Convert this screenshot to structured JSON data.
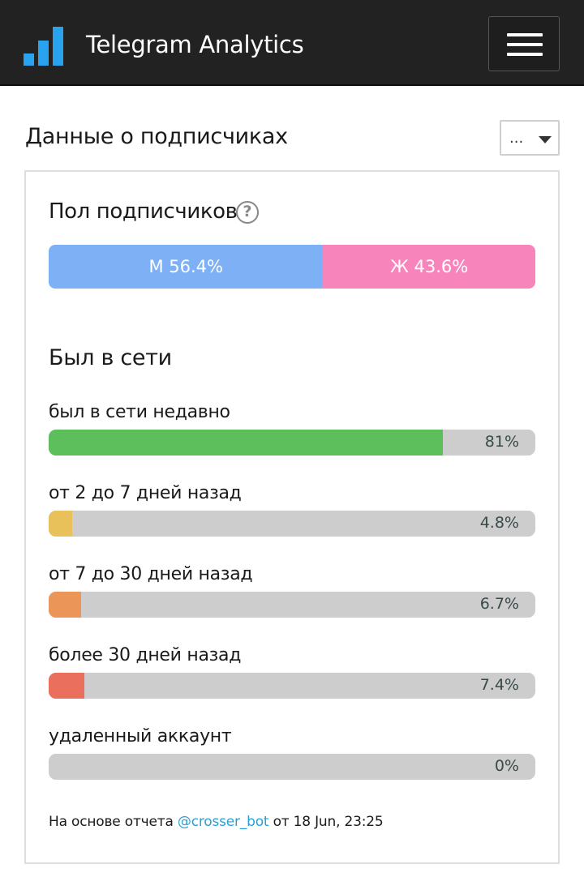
{
  "header": {
    "app_title": "Telegram Analytics",
    "logo_icon": "bar-chart-icon",
    "menu_icon": "hamburger-menu-icon",
    "accent_color": "#2aa3ee"
  },
  "page": {
    "section_title": "Данные о подписчиках",
    "dropdown_value": "...",
    "dropdown_icon": "caret-down-icon"
  },
  "gender": {
    "title": "Пол подписчиков",
    "help_icon": "question-circle-icon",
    "help_glyph": "?",
    "male": {
      "label": "М 56.4%",
      "share": 56.4,
      "color": "#7eb0f5"
    },
    "female": {
      "label": "Ж 43.6%",
      "share": 43.6,
      "color": "#f884bc"
    }
  },
  "online": {
    "title": "Был в сети",
    "rows": [
      {
        "label": "был в сети недавно",
        "percent_text": "81%",
        "value": 81,
        "color": "#5cbf5c"
      },
      {
        "label": "от 2 до 7 дней назад",
        "percent_text": "4.8%",
        "value": 4.8,
        "color": "#e8c15a"
      },
      {
        "label": "от 7 до 30 дней назад",
        "percent_text": "6.7%",
        "value": 6.7,
        "color": "#ec9559"
      },
      {
        "label": "более 30 дней назад",
        "percent_text": "7.4%",
        "value": 7.4,
        "color": "#ea6f5d"
      },
      {
        "label": "удаленный аккаунт",
        "percent_text": "0%",
        "value": 0,
        "color": "#cdcdcd"
      }
    ]
  },
  "footer": {
    "prefix": "На основе отчета ",
    "bot_link": "@crosser_bot",
    "suffix": " от 18 Jun, 23:25"
  }
}
